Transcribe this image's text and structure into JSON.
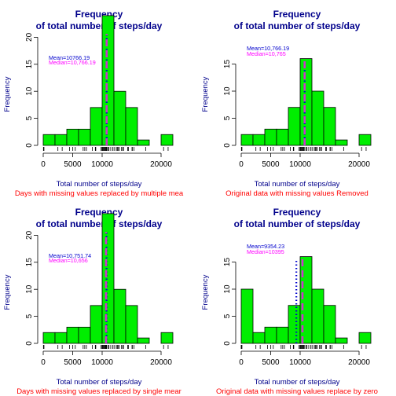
{
  "colors": {
    "bar_fill": "#00ee00",
    "bar_stroke": "#000000",
    "title": "#00008b",
    "axis_label": "#00008b",
    "subtitle": "#ff0000",
    "mean_line": "#0000cd",
    "median_line": "#cd32cd",
    "mean_text": "#0000cd",
    "median_text": "#ff00ff"
  },
  "chart_data": [
    {
      "type": "bar",
      "title_line1": "Frequency",
      "title_line2": "of total number of steps/day",
      "xlabel": "Total number of steps/day",
      "ylabel": "Frequency",
      "subtitle": "Days with missing values replaced by multiple mea",
      "xlim": [
        0,
        22000
      ],
      "ylim": [
        0,
        24
      ],
      "yticks": [
        0,
        5,
        10,
        15,
        20
      ],
      "xticks": [
        0,
        5000,
        10000,
        20000
      ],
      "bin_edges": [
        0,
        2000,
        4000,
        6000,
        8000,
        10000,
        12000,
        14000,
        16000,
        18000,
        20000,
        22000
      ],
      "values": [
        2,
        2,
        3,
        3,
        7,
        24,
        10,
        7,
        1,
        0,
        2
      ],
      "mean": 10766.19,
      "median": 10766.19,
      "mean_label": "Mean=10766.19",
      "median_label": "Median=10,766.19",
      "rug": [
        41,
        126,
        2492,
        3219,
        4472,
        5018,
        5441,
        6778,
        7047,
        7336,
        8334,
        8841,
        8918,
        9819,
        9900,
        10056,
        10139,
        10183,
        10304,
        10395,
        10439,
        10571,
        10600,
        10765,
        10766,
        10766,
        10766,
        10766,
        10766,
        10766,
        10766,
        10766,
        11015,
        11162,
        11458,
        11829,
        11834,
        12116,
        12426,
        12608,
        12787,
        12883,
        13294,
        13452,
        13646,
        14339,
        14478,
        15084,
        15098,
        15110,
        15414,
        17382,
        20427,
        21194
      ]
    },
    {
      "type": "bar",
      "title_line1": "Frequency",
      "title_line2": "of total number of steps/day",
      "xlabel": "Total number of steps/day",
      "ylabel": "Frequency",
      "subtitle": "Original data with missing values Removed",
      "xlim": [
        0,
        22000
      ],
      "ylim": [
        0,
        16
      ],
      "yticks": [
        0,
        5,
        10,
        15
      ],
      "xticks": [
        0,
        5000,
        10000,
        20000
      ],
      "bin_edges": [
        0,
        2000,
        4000,
        6000,
        8000,
        10000,
        12000,
        14000,
        16000,
        18000,
        20000,
        22000
      ],
      "values": [
        2,
        2,
        3,
        3,
        7,
        16,
        10,
        7,
        1,
        0,
        2
      ],
      "mean": 10766.19,
      "median": 10765,
      "mean_label": "Mean=10,766.19",
      "median_label": "Median=10,765",
      "rug": [
        41,
        126,
        2492,
        3219,
        4472,
        5018,
        5441,
        6778,
        7047,
        7336,
        8334,
        8841,
        8918,
        9819,
        9900,
        10056,
        10139,
        10183,
        10304,
        10395,
        10439,
        10571,
        10600,
        10765,
        11015,
        11162,
        11458,
        11829,
        11834,
        12116,
        12426,
        12608,
        12787,
        12883,
        13294,
        13452,
        13646,
        14339,
        14478,
        15084,
        15098,
        15110,
        15414,
        17382,
        20427,
        21194
      ]
    },
    {
      "type": "bar",
      "title_line1": "Frequency",
      "title_line2": "of total number of steps/day",
      "xlabel": "Total number of steps/day",
      "ylabel": "Frequency",
      "subtitle": "Days with missing values replaced by single mear",
      "xlim": [
        0,
        22000
      ],
      "ylim": [
        0,
        24
      ],
      "yticks": [
        0,
        5,
        10,
        15,
        20
      ],
      "xticks": [
        0,
        5000,
        10000,
        20000
      ],
      "bin_edges": [
        0,
        2000,
        4000,
        6000,
        8000,
        10000,
        12000,
        14000,
        16000,
        18000,
        20000,
        22000
      ],
      "values": [
        2,
        2,
        3,
        3,
        7,
        24,
        10,
        7,
        1,
        0,
        2
      ],
      "mean": 10751.74,
      "median": 10656,
      "mean_label": "Mean=10,751.74",
      "median_label": "Median=10,656",
      "rug": [
        41,
        126,
        2492,
        3219,
        4472,
        5018,
        5441,
        6778,
        7047,
        7336,
        8334,
        8841,
        8918,
        9819,
        9900,
        10056,
        10139,
        10183,
        10304,
        10395,
        10439,
        10571,
        10600,
        10656,
        10656,
        10656,
        10656,
        10656,
        10656,
        10656,
        10656,
        10765,
        11015,
        11162,
        11458,
        11829,
        11834,
        12116,
        12426,
        12608,
        12787,
        12883,
        13294,
        13452,
        13646,
        14339,
        14478,
        15084,
        15098,
        15110,
        15414,
        17382,
        20427,
        21194
      ]
    },
    {
      "type": "bar",
      "title_line1": "Frequency",
      "title_line2": "of total number of steps/day",
      "xlabel": "Total number of steps/day",
      "ylabel": "Frequency",
      "subtitle": "Original data with missing values replace by zero",
      "xlim": [
        0,
        22000
      ],
      "ylim": [
        0,
        16
      ],
      "yticks": [
        0,
        5,
        10,
        15
      ],
      "xticks": [
        0,
        5000,
        10000,
        20000
      ],
      "bin_edges": [
        0,
        2000,
        4000,
        6000,
        8000,
        10000,
        12000,
        14000,
        16000,
        18000,
        20000,
        22000
      ],
      "values": [
        10,
        2,
        3,
        3,
        7,
        16,
        10,
        7,
        1,
        0,
        2
      ],
      "mean": 9354.23,
      "median": 10395,
      "mean_label": "Mean=9354.23",
      "median_label": "Median=10395",
      "rug": [
        0,
        41,
        126,
        2492,
        3219,
        4472,
        5018,
        5441,
        6778,
        7047,
        7336,
        8334,
        8841,
        8918,
        9819,
        9900,
        10056,
        10139,
        10183,
        10304,
        10395,
        10439,
        10571,
        10600,
        10765,
        11015,
        11162,
        11458,
        11829,
        11834,
        12116,
        12426,
        12608,
        12787,
        12883,
        13294,
        13452,
        13646,
        14339,
        14478,
        15084,
        15098,
        15110,
        15414,
        17382,
        20427,
        21194
      ]
    }
  ]
}
